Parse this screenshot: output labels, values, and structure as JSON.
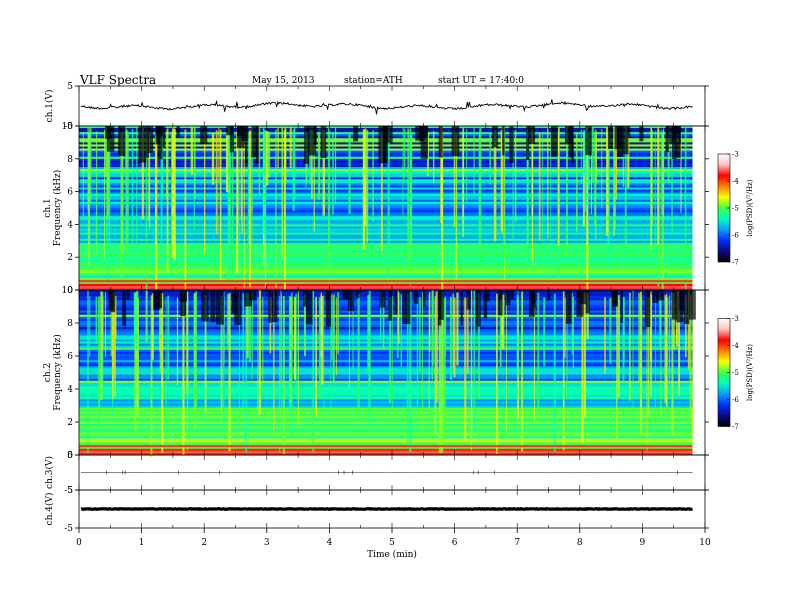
{
  "header": {
    "title": "VLF  Spectra",
    "date": "May 15, 2013",
    "station": "station=ATH",
    "start": "start  UT  =    17:40:0"
  },
  "chart_data": [
    {
      "type": "line",
      "name": "ch1-timeseries",
      "ylabel": "ch.1(V)",
      "ylim": [
        -5,
        5
      ],
      "yticks": [
        "5",
        "-5"
      ],
      "xlim": [
        0,
        10
      ],
      "trace_baseline": 0,
      "trace_end": 9.8
    },
    {
      "type": "heatmap",
      "name": "ch1-spectrogram",
      "ylabel_lines": [
        "ch.1",
        "Frequency (kHz)"
      ],
      "ylim": [
        0,
        10
      ],
      "yticks": [
        "0",
        "2",
        "4",
        "6",
        "8",
        "10"
      ],
      "xlim": [
        0,
        10
      ],
      "data_end": 9.8,
      "colorbar": {
        "label": "log(PSD)(V²/Hz)",
        "range": [
          -7,
          -3
        ],
        "ticks": [
          "-3",
          "-4",
          "-5",
          "-6",
          "-7"
        ],
        "colors": [
          "#000000",
          "#0a0a80",
          "#0030ff",
          "#00a0ff",
          "#00ffc0",
          "#40ff40",
          "#ffff00",
          "#ff8000",
          "#ff0000",
          "#ffc0c0",
          "#ffffff"
        ]
      }
    },
    {
      "type": "heatmap",
      "name": "ch2-spectrogram",
      "ylabel_lines": [
        "ch.2",
        "Frequency (kHz)"
      ],
      "ylim": [
        0,
        10
      ],
      "yticks": [
        "0",
        "2",
        "4",
        "6",
        "8",
        "10"
      ],
      "xlim": [
        0,
        10
      ],
      "data_end": 9.8,
      "colorbar": {
        "label": "log(PSD)(V²/Hz)",
        "range": [
          -7,
          -3
        ],
        "ticks": [
          "-3",
          "-4",
          "-5",
          "-6",
          "-7"
        ],
        "colors": [
          "#000000",
          "#0a0a80",
          "#0030ff",
          "#00a0ff",
          "#00ffc0",
          "#40ff40",
          "#ffff00",
          "#ff8000",
          "#ff0000",
          "#ffc0c0",
          "#ffffff"
        ]
      }
    },
    {
      "type": "line",
      "name": "ch3-timeseries",
      "ylabel": "ch.3(V)",
      "ylim": [
        -5,
        5
      ],
      "yticks": [
        "5",
        "-5"
      ],
      "xlim": [
        0,
        10
      ],
      "trace_baseline": 0,
      "trace_end": 9.8
    },
    {
      "type": "line",
      "name": "ch4-timeseries",
      "ylabel": "ch.4(V)",
      "ylim": [
        -5,
        5
      ],
      "yticks": [
        "5",
        "-5"
      ],
      "xlim": [
        0,
        10
      ],
      "trace_baseline": 0,
      "trace_end": 9.8
    }
  ],
  "xaxis": {
    "label": "Time  (min)",
    "ticks": [
      "0",
      "1",
      "2",
      "3",
      "4",
      "5",
      "6",
      "7",
      "8",
      "9",
      "10"
    ]
  }
}
